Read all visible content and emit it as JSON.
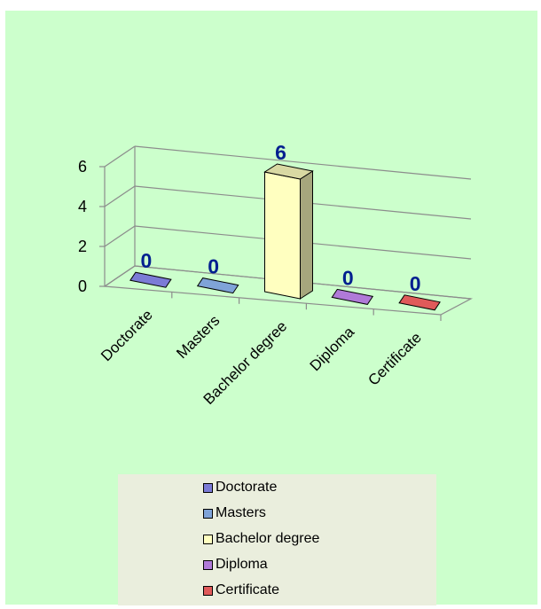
{
  "chart_data": {
    "type": "bar",
    "categories": [
      "Doctorate",
      "Masters",
      "Bachelor degree",
      "Diploma",
      "Certificate"
    ],
    "values": [
      0,
      0,
      6,
      0,
      0
    ],
    "colors": [
      "#7b7bd6",
      "#7fa3d8",
      "#ffffc0",
      "#b07ad8",
      "#e05a5a"
    ],
    "ylim": [
      0,
      6
    ],
    "yticks": [
      0,
      2,
      4,
      6
    ],
    "ytick_labels": [
      "0",
      "2",
      "4",
      "6"
    ],
    "data_labels": [
      "0",
      "0",
      "6",
      "0",
      "0"
    ],
    "legend": [
      "Doctorate",
      "Masters",
      "Bachelor degree",
      "Diploma",
      "Certificate"
    ],
    "legend_position": "bottom",
    "grid": true,
    "style": "3d"
  }
}
